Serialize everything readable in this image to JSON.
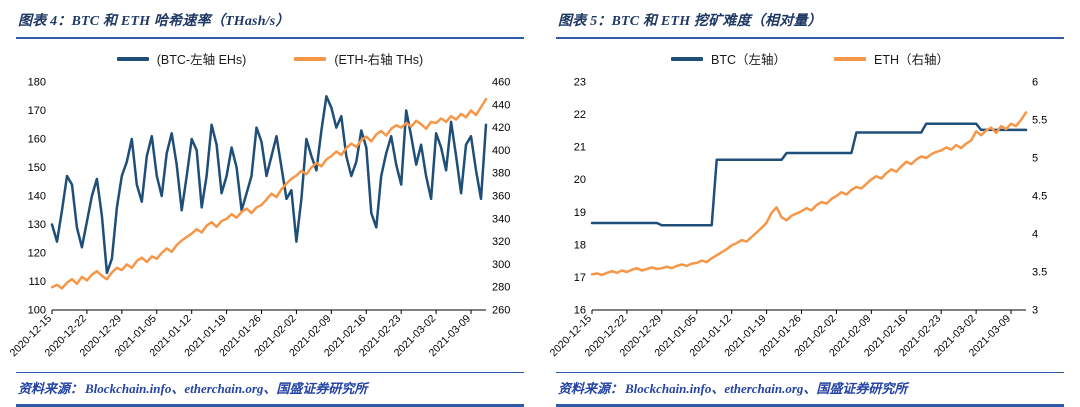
{
  "chart_data": [
    {
      "type": "line",
      "title": "图表 4：BTC 和 ETH 哈希速率（THash/s）",
      "source_label": "资料来源：",
      "source_text": "Blockchain.info、etherchain.org、国盛证券研究所",
      "left_axis": {
        "min": 100,
        "max": 180,
        "step": 10
      },
      "right_axis": {
        "min": 260,
        "max": 460,
        "step": 20
      },
      "grid": false,
      "legend_position": "top",
      "x_labels": [
        "2020-12-15",
        "2020-12-22",
        "2020-12-29",
        "2021-01-05",
        "2021-01-12",
        "2021-01-19",
        "2021-01-26",
        "2021-02-02",
        "2021-02-09",
        "2021-02-16",
        "2021-02-23",
        "2021-03-02",
        "2021-03-09"
      ],
      "series": [
        {
          "label": "(BTC-左轴 EHs)",
          "axis": "left",
          "color": "#1F4E79",
          "width": 2.5,
          "values": [
            130,
            124,
            135,
            147,
            144,
            129,
            122,
            131,
            140,
            146,
            133,
            113,
            118,
            136,
            147,
            152,
            160,
            144,
            138,
            154,
            161,
            147,
            140,
            155,
            162,
            151,
            135,
            147,
            160,
            156,
            136,
            147,
            165,
            158,
            141,
            147,
            157,
            150,
            135,
            141,
            147,
            164,
            159,
            147,
            154,
            161,
            150,
            139,
            142,
            124,
            139,
            160,
            154,
            149,
            163,
            175,
            171,
            164,
            168,
            154,
            147,
            152,
            163,
            157,
            134,
            129,
            147,
            155,
            161,
            151,
            144,
            170,
            161,
            151,
            158,
            147,
            139,
            162,
            157,
            149,
            166,
            154,
            141,
            158,
            161,
            149,
            139,
            165
          ]
        },
        {
          "label": "(ETH-右轴 THs)",
          "axis": "right",
          "color": "#F79646",
          "width": 2.5,
          "values": [
            280,
            282,
            279,
            284,
            287,
            283,
            289,
            286,
            291,
            294,
            290,
            287,
            293,
            297,
            295,
            300,
            297,
            303,
            306,
            302,
            307,
            305,
            310,
            314,
            311,
            317,
            321,
            324,
            327,
            331,
            328,
            334,
            337,
            333,
            338,
            340,
            344,
            341,
            346,
            349,
            345,
            350,
            352,
            357,
            362,
            359,
            366,
            371,
            375,
            378,
            382,
            379,
            385,
            389,
            386,
            392,
            395,
            399,
            396,
            402,
            406,
            403,
            409,
            412,
            408,
            414,
            417,
            413,
            419,
            422,
            420,
            424,
            421,
            426,
            423,
            419,
            425,
            424,
            428,
            425,
            430,
            427,
            432,
            429,
            435,
            431,
            438,
            445
          ]
        }
      ]
    },
    {
      "type": "line",
      "title": "图表 5：BTC 和 ETH 挖矿难度（相对量）",
      "source_label": "资料来源：",
      "source_text": "Blockchain.info、etherchain.org、国盛证券研究所",
      "left_axis": {
        "min": 16,
        "max": 23,
        "step": 1
      },
      "right_axis": {
        "min": 3,
        "max": 6,
        "step": 0.5
      },
      "grid": false,
      "legend_position": "top",
      "x_labels": [
        "2020-12-15",
        "2020-12-22",
        "2020-12-29",
        "2021-01-05",
        "2021-01-12",
        "2021-01-19",
        "2021-01-26",
        "2021-02-02",
        "2021-02-09",
        "2021-02-16",
        "2021-02-23",
        "2021-03-02",
        "2021-03-09"
      ],
      "series": [
        {
          "label": "BTC（左轴）",
          "axis": "left",
          "color": "#1F4E79",
          "width": 2.5,
          "values": [
            18.67,
            18.67,
            18.67,
            18.67,
            18.67,
            18.67,
            18.67,
            18.67,
            18.67,
            18.67,
            18.67,
            18.67,
            18.67,
            18.67,
            18.6,
            18.6,
            18.6,
            18.6,
            18.6,
            18.6,
            18.6,
            18.6,
            18.6,
            18.6,
            18.6,
            20.61,
            20.61,
            20.61,
            20.61,
            20.61,
            20.61,
            20.61,
            20.61,
            20.61,
            20.61,
            20.61,
            20.61,
            20.61,
            20.61,
            20.82,
            20.82,
            20.82,
            20.82,
            20.82,
            20.82,
            20.82,
            20.82,
            20.82,
            20.82,
            20.82,
            20.82,
            20.82,
            20.82,
            21.45,
            21.45,
            21.45,
            21.45,
            21.45,
            21.45,
            21.45,
            21.45,
            21.45,
            21.45,
            21.45,
            21.45,
            21.45,
            21.45,
            21.72,
            21.72,
            21.72,
            21.72,
            21.72,
            21.72,
            21.72,
            21.72,
            21.72,
            21.72,
            21.72,
            21.53,
            21.53,
            21.53,
            21.53,
            21.53,
            21.53,
            21.53,
            21.53,
            21.53,
            21.53
          ]
        },
        {
          "label": "ETH（右轴）",
          "axis": "right",
          "color": "#F79646",
          "width": 2.5,
          "values": [
            3.47,
            3.48,
            3.46,
            3.49,
            3.51,
            3.49,
            3.52,
            3.5,
            3.53,
            3.55,
            3.52,
            3.54,
            3.56,
            3.54,
            3.55,
            3.57,
            3.55,
            3.58,
            3.6,
            3.58,
            3.61,
            3.62,
            3.65,
            3.63,
            3.68,
            3.72,
            3.76,
            3.8,
            3.85,
            3.88,
            3.92,
            3.9,
            3.96,
            4.02,
            4.08,
            4.15,
            4.28,
            4.35,
            4.22,
            4.18,
            4.24,
            4.27,
            4.3,
            4.34,
            4.31,
            4.38,
            4.42,
            4.4,
            4.46,
            4.5,
            4.55,
            4.52,
            4.58,
            4.62,
            4.6,
            4.66,
            4.72,
            4.76,
            4.73,
            4.8,
            4.85,
            4.82,
            4.89,
            4.95,
            4.92,
            4.98,
            5.02,
            5.0,
            5.05,
            5.08,
            5.1,
            5.14,
            5.11,
            5.17,
            5.13,
            5.19,
            5.23,
            5.35,
            5.3,
            5.36,
            5.4,
            5.33,
            5.42,
            5.38,
            5.45,
            5.42,
            5.5,
            5.6
          ]
        }
      ]
    }
  ]
}
